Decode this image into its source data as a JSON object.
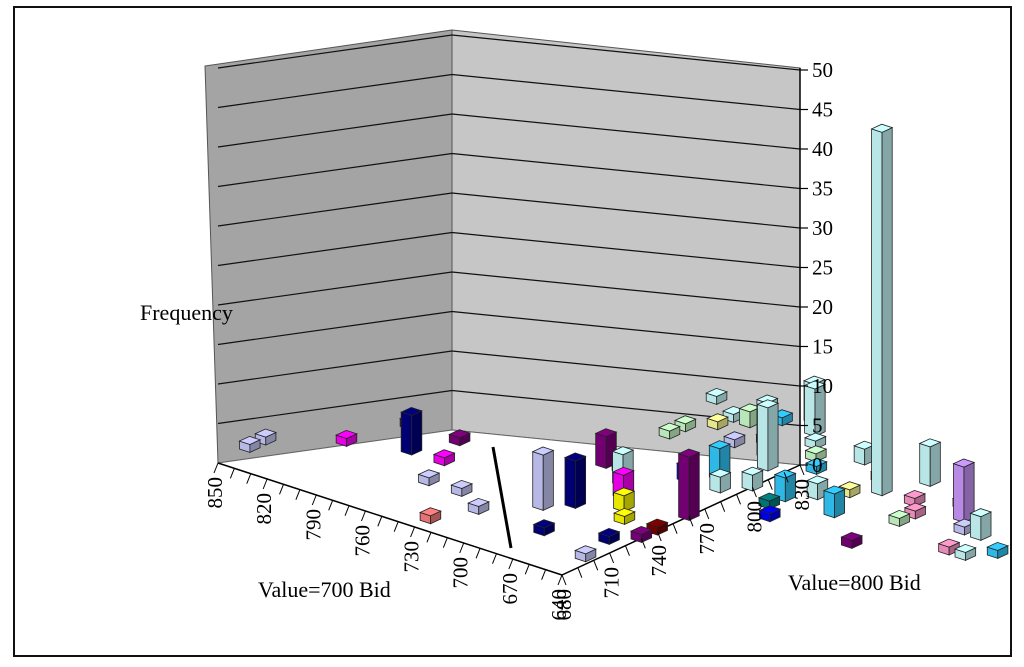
{
  "chart_data": {
    "type": "bar",
    "subtype": "3d-column",
    "title": "",
    "zlabel": "Frequency",
    "xlabel": "Value=700 Bid",
    "ylabel": "Value=800 Bid",
    "zlim": [
      0,
      50
    ],
    "z_ticks": [
      "0",
      "5",
      "10",
      "15",
      "20",
      "25",
      "30",
      "35",
      "40",
      "45",
      "50"
    ],
    "x_ticks": [
      "640",
      "670",
      "700",
      "730",
      "760",
      "790",
      "820",
      "850"
    ],
    "y_ticks": [
      "680",
      "710",
      "740",
      "770",
      "800",
      "830"
    ],
    "grid": true,
    "walls_color": "#a8a8a8",
    "bars": [
      {
        "x": 850,
        "y": 700,
        "z": 1,
        "color": "#ccccff"
      },
      {
        "x": 850,
        "y": 710,
        "z": 1,
        "color": "#ccccff"
      },
      {
        "x": 820,
        "y": 730,
        "z": 1,
        "color": "#ff00ff"
      },
      {
        "x": 810,
        "y": 760,
        "z": 1,
        "color": "#800080"
      },
      {
        "x": 790,
        "y": 740,
        "z": 5,
        "color": "#000080"
      },
      {
        "x": 780,
        "y": 760,
        "z": 1,
        "color": "#800080"
      },
      {
        "x": 770,
        "y": 740,
        "z": 1,
        "color": "#ff00ff"
      },
      {
        "x": 760,
        "y": 720,
        "z": 1,
        "color": "#ccccff"
      },
      {
        "x": 740,
        "y": 720,
        "z": 1,
        "color": "#ccccff"
      },
      {
        "x": 730,
        "y": 690,
        "z": 1,
        "color": "#ff8080"
      },
      {
        "x": 720,
        "y": 710,
        "z": 1,
        "color": "#ccccff"
      },
      {
        "x": 710,
        "y": 780,
        "z": 4,
        "color": "#800080"
      },
      {
        "x": 700,
        "y": 780,
        "z": 1,
        "color": "#008080"
      },
      {
        "x": 700,
        "y": 730,
        "z": 7,
        "color": "#ccccff"
      },
      {
        "x": 690,
        "y": 740,
        "z": 6,
        "color": "#000080"
      },
      {
        "x": 690,
        "y": 770,
        "z": 4,
        "color": "#ccffff"
      },
      {
        "x": 680,
        "y": 760,
        "z": 3,
        "color": "#ff00ff"
      },
      {
        "x": 680,
        "y": 710,
        "z": 1,
        "color": "#000080"
      },
      {
        "x": 670,
        "y": 750,
        "z": 2,
        "color": "#ffff00"
      },
      {
        "x": 670,
        "y": 790,
        "z": 2,
        "color": "#0000ff"
      },
      {
        "x": 660,
        "y": 800,
        "z": 4,
        "color": "#33ccff"
      },
      {
        "x": 660,
        "y": 740,
        "z": 1,
        "color": "#ffff00"
      },
      {
        "x": 650,
        "y": 790,
        "z": 2,
        "color": "#ccffff"
      },
      {
        "x": 650,
        "y": 720,
        "z": 1,
        "color": "#000080"
      },
      {
        "x": 645,
        "y": 700,
        "z": 1,
        "color": "#ccccff"
      },
      {
        "x": 640,
        "y": 760,
        "z": 8,
        "color": "#800080"
      },
      {
        "x": 640,
        "y": 800,
        "z": 2,
        "color": "#ccffff"
      },
      {
        "x": 640,
        "y": 740,
        "z": 1,
        "color": "#800000"
      },
      {
        "x": 640,
        "y": 730,
        "z": 1,
        "color": "#800080"
      },
      {
        "x": 650,
        "y": 820,
        "z": 8,
        "color": "#ccffff"
      },
      {
        "x": 660,
        "y": 830,
        "z": 7,
        "color": "#ccffff"
      },
      {
        "x": 640,
        "y": 840,
        "z": 1,
        "color": "#ccffcc"
      },
      {
        "x": 630,
        "y": 830,
        "z": 1,
        "color": "#33ccff"
      },
      {
        "x": 650,
        "y": 850,
        "z": 1,
        "color": "#ccffff"
      },
      {
        "x": 620,
        "y": 850,
        "z": 2,
        "color": "#ccffff"
      },
      {
        "x": 620,
        "y": 800,
        "z": 3,
        "color": "#33ccff"
      },
      {
        "x": 620,
        "y": 790,
        "z": 1,
        "color": "#008080"
      },
      {
        "x": 610,
        "y": 810,
        "z": 2,
        "color": "#ccffff"
      },
      {
        "x": 610,
        "y": 780,
        "z": 1,
        "color": "#0000ff"
      },
      {
        "x": 600,
        "y": 820,
        "z": 1,
        "color": "#ffff99"
      },
      {
        "x": 600,
        "y": 840,
        "z": 1,
        "color": "#ccffff"
      },
      {
        "x": 590,
        "y": 830,
        "z": 46,
        "color": "#ccffff"
      },
      {
        "x": 590,
        "y": 800,
        "z": 3,
        "color": "#33ccff"
      },
      {
        "x": 580,
        "y": 850,
        "z": 5,
        "color": "#ccffff"
      },
      {
        "x": 570,
        "y": 830,
        "z": 1,
        "color": "#ff99cc"
      },
      {
        "x": 560,
        "y": 810,
        "z": 1,
        "color": "#ccffcc"
      },
      {
        "x": 560,
        "y": 780,
        "z": 1,
        "color": "#800080"
      },
      {
        "x": 550,
        "y": 840,
        "z": 1,
        "color": "#cc99ff"
      },
      {
        "x": 540,
        "y": 830,
        "z": 7,
        "color": "#cc99ff"
      },
      {
        "x": 530,
        "y": 820,
        "z": 1,
        "color": "#ccccff"
      },
      {
        "x": 520,
        "y": 800,
        "z": 1,
        "color": "#ff99cc"
      },
      {
        "x": 520,
        "y": 820,
        "z": 3,
        "color": "#ccffff"
      },
      {
        "x": 510,
        "y": 800,
        "z": 1,
        "color": "#ccffff"
      },
      {
        "x": 500,
        "y": 810,
        "z": 1,
        "color": "#33ccff"
      },
      {
        "x": 490,
        "y": 830,
        "z": 1,
        "color": "#cc99ff"
      },
      {
        "x": 700,
        "y": 850,
        "z": 1,
        "color": "#ccffff"
      },
      {
        "x": 690,
        "y": 850,
        "z": 2,
        "color": "#ccffcc"
      },
      {
        "x": 680,
        "y": 830,
        "z": 1,
        "color": "#ccccff"
      },
      {
        "x": 670,
        "y": 840,
        "z": 1,
        "color": "#ccffff"
      },
      {
        "x": 660,
        "y": 860,
        "z": 6,
        "color": "#ccffff"
      },
      {
        "x": 670,
        "y": 870,
        "z": 5,
        "color": "#ccffff"
      },
      {
        "x": 680,
        "y": 860,
        "z": 1,
        "color": "#33ccff"
      },
      {
        "x": 710,
        "y": 820,
        "z": 1,
        "color": "#ccffcc"
      },
      {
        "x": 700,
        "y": 840,
        "z": 1,
        "color": "#ffff99"
      },
      {
        "x": 710,
        "y": 830,
        "z": 1,
        "color": "#ccffcc"
      },
      {
        "x": 720,
        "y": 860,
        "z": 1,
        "color": "#ccffff"
      },
      {
        "x": 560,
        "y": 820,
        "z": 1,
        "color": "#ff99cc"
      }
    ],
    "annotations": [
      {
        "type": "line",
        "description": "black diagonal reference line"
      }
    ]
  }
}
